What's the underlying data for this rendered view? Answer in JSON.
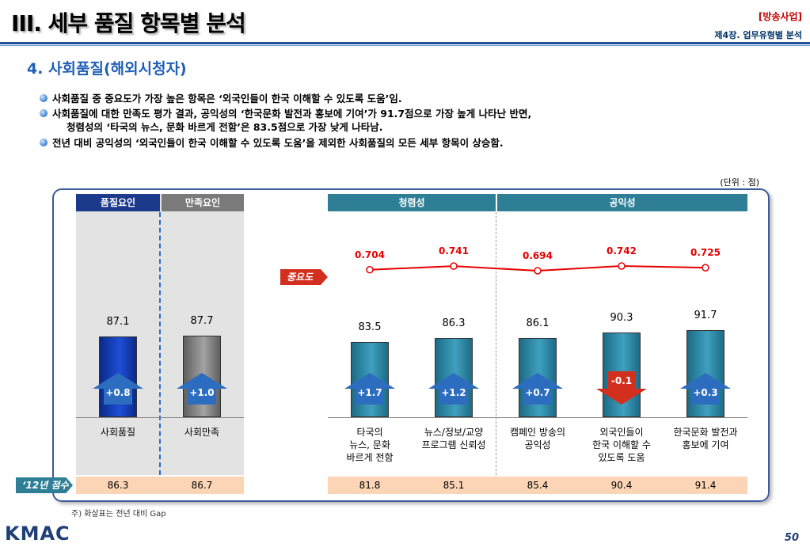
{
  "header": {
    "title": "III. 세부 품질 항목별 분석",
    "tag": "[방송사업]",
    "chapter": "제4장. 업무유형별 분석"
  },
  "subtitle": "4. 사회품질(해외시청자)",
  "bullets": [
    "사회품질 중 중요도가 가장 높은 항목은 ‘외국인들이 한국 이해할 수 있도록 도움’임.",
    "사회품질에 대한 만족도 평가 결과, 공익성의 ‘한국문화 발전과 홍보에 기여’가 91.7점으로 가장 높게 나타난 반면,",
    "청렴성의 ‘타국의 뉴스, 문화 바르게 전함’은 83.5점으로 가장 낮게 나타남.",
    "전년 대비 공익성의 ‘외국인들이 한국 이해할 수 있도록 도움’을 제외한 사회품질의 모든 세부 항목이 상승함."
  ],
  "unit": "(단위 : 점)",
  "group_headers": {
    "quality": "품질요인",
    "satisfaction": "만족요인",
    "integrity": "청렴성",
    "publicness": "공익성"
  },
  "tags": {
    "importance": "중요도",
    "prev_year": "‘12년 점수"
  },
  "note": "주) 화살표는 전년 대비 Gap",
  "logo": "KMAC",
  "page_number": "50",
  "colors": {
    "navy": "#1b3a8c",
    "gray": "#7a7a7a",
    "teal": "#2e7f96",
    "up_arrow": "#2d6dbf",
    "down_arrow": "#d32f1f",
    "importance_line": "#e60000",
    "prev_row": "#fbd5b5"
  },
  "chart_data": {
    "type": "bar",
    "categories": [
      "사회품질",
      "사회만족",
      "타국의\n뉴스, 문화\n바르게 전함",
      "뉴스/정보/교양\n프로그램 신뢰성",
      "캠페인 방송의\n공익성",
      "외국인들이\n한국 이해할 수\n있도록 도움",
      "한국문화 발전과\n홍보에 기여"
    ],
    "series": [
      {
        "values": [
          87.1,
          87.7,
          83.5,
          86.3,
          86.1,
          90.3,
          91.7
        ]
      }
    ],
    "gap_labels": [
      "+0.8",
      "+1.0",
      "+1.7",
      "+1.2",
      "+0.7",
      "-0.1",
      "+0.3"
    ],
    "gap_values": [
      0.8,
      1.0,
      1.7,
      1.2,
      0.7,
      -0.1,
      0.3
    ],
    "prev_year_values": [
      "86.3",
      "86.7",
      "81.8",
      "85.1",
      "85.4",
      "90.4",
      "91.4"
    ],
    "importance": {
      "values": [
        0.704,
        0.741,
        0.694,
        0.742,
        0.725
      ],
      "labels": [
        "0.704",
        "0.741",
        "0.694",
        "0.742",
        "0.725"
      ]
    }
  }
}
